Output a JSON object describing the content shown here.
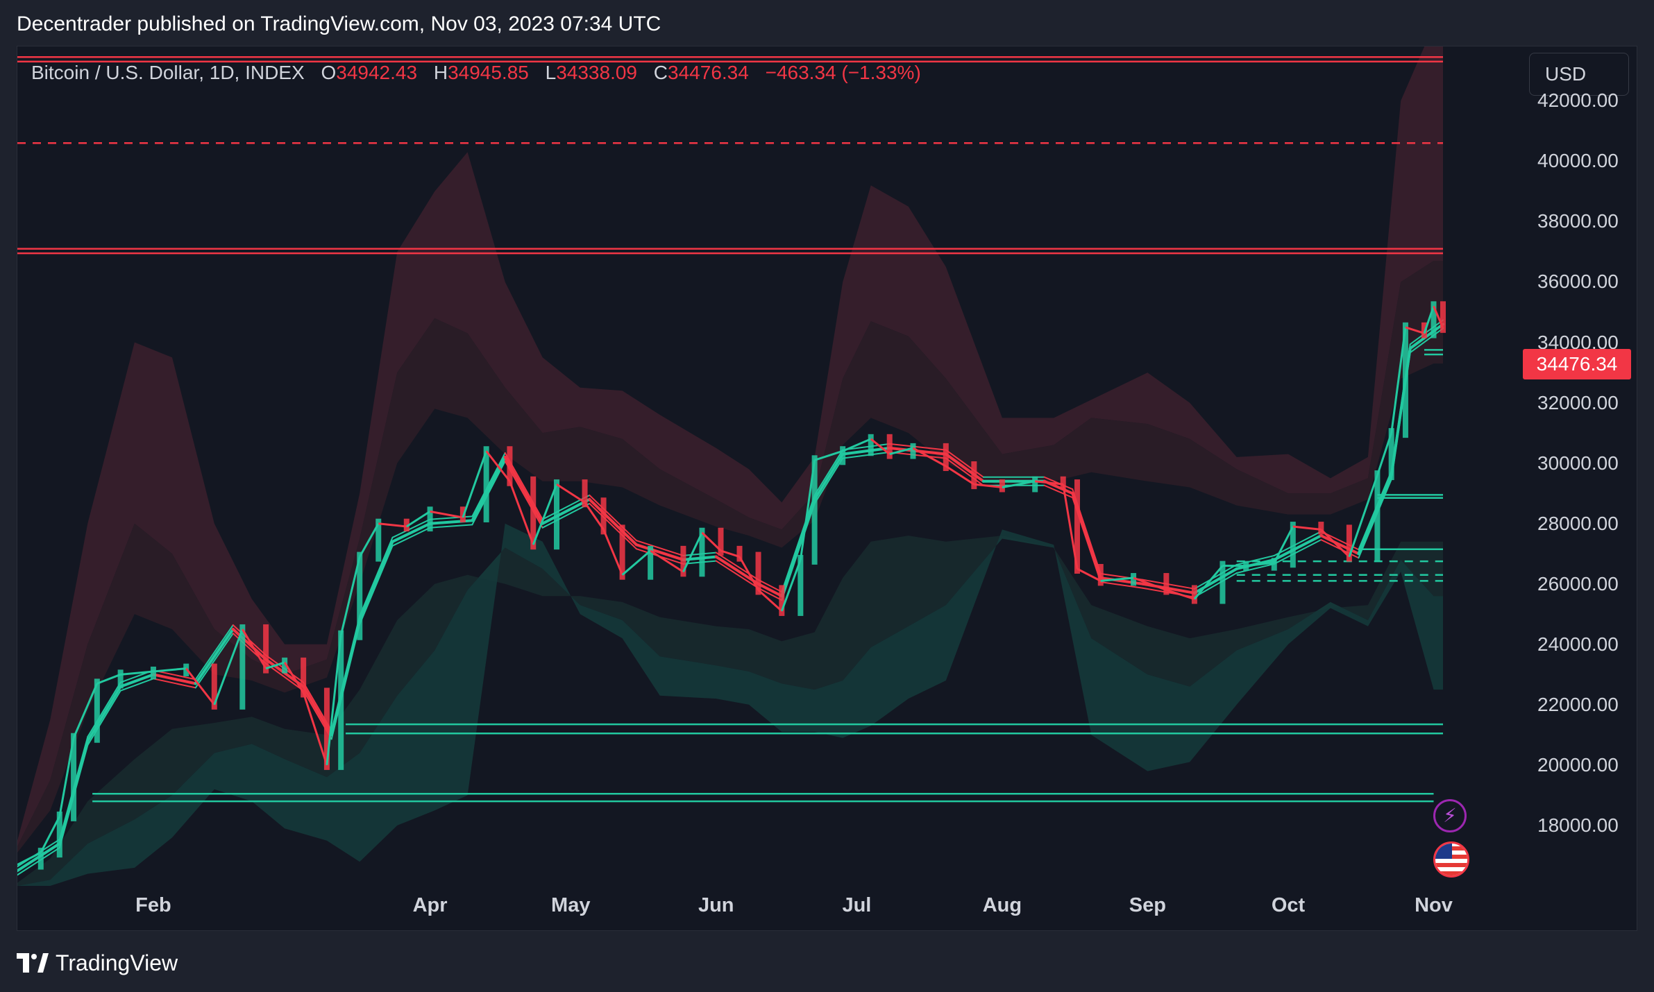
{
  "header": {
    "publisher_line": "Decentrader published on TradingView.com, Nov 03, 2023 07:34 UTC"
  },
  "legend": {
    "symbol": "Bitcoin / U.S. Dollar, 1D, INDEX",
    "open_label": "O",
    "open_value": "34942.43",
    "high_label": "H",
    "high_value": "34945.85",
    "low_label": "L",
    "low_value": "34338.09",
    "close_label": "C",
    "close_value": "34476.34",
    "change": "−463.34 (−1.33%)"
  },
  "currency_button": "USD",
  "last_price_label": "34476.34",
  "footer": {
    "brand": "TradingView"
  },
  "colors": {
    "up": "#22c9a0",
    "down": "#f23645",
    "background": "#131722",
    "frame": "#1e222d",
    "band_red": "#3a1f2c",
    "band_green": "#15383a"
  },
  "icons": {
    "event_1": "lightning-icon",
    "event_2": "us-flag-icon",
    "brand": "tradingview-logo-icon"
  },
  "chart_data": {
    "type": "line",
    "title": "Bitcoin / U.S. Dollar, 1D, INDEX",
    "xlabel": "",
    "ylabel": "",
    "ylim": [
      16000,
      43800
    ],
    "y_ticks": [
      "18000.00",
      "20000.00",
      "22000.00",
      "24000.00",
      "26000.00",
      "28000.00",
      "30000.00",
      "32000.00",
      "34000.00",
      "36000.00",
      "38000.00",
      "40000.00",
      "42000.00"
    ],
    "x_ticks": [
      "Feb",
      "Apr",
      "May",
      "Jun",
      "Jul",
      "Aug",
      "Sep",
      "Oct",
      "Nov"
    ],
    "x_tick_dates": [
      "2023-02-01",
      "2023-04-01",
      "2023-05-01",
      "2023-06-01",
      "2023-07-01",
      "2023-08-01",
      "2023-09-01",
      "2023-10-01",
      "2023-11-01"
    ],
    "x_range": [
      "2023-01-03",
      "2023-11-03"
    ],
    "series": [
      {
        "role": "price",
        "dates": [
          "2023-01-03",
          "2023-01-08",
          "2023-01-12",
          "2023-01-15",
          "2023-01-20",
          "2023-01-25",
          "2023-02-01",
          "2023-02-08",
          "2023-02-14",
          "2023-02-20",
          "2023-02-25",
          "2023-03-01",
          "2023-03-05",
          "2023-03-10",
          "2023-03-13",
          "2023-03-17",
          "2023-03-21",
          "2023-03-27",
          "2023-04-01",
          "2023-04-08",
          "2023-04-13",
          "2023-04-18",
          "2023-04-23",
          "2023-04-28",
          "2023-05-04",
          "2023-05-08",
          "2023-05-12",
          "2023-05-18",
          "2023-05-25",
          "2023-05-29",
          "2023-06-02",
          "2023-06-06",
          "2023-06-10",
          "2023-06-15",
          "2023-06-19",
          "2023-06-22",
          "2023-06-28",
          "2023-07-04",
          "2023-07-08",
          "2023-07-13",
          "2023-07-20",
          "2023-07-26",
          "2023-08-01",
          "2023-08-08",
          "2023-08-14",
          "2023-08-17",
          "2023-08-22",
          "2023-08-29",
          "2023-09-05",
          "2023-09-11",
          "2023-09-17",
          "2023-09-22",
          "2023-09-28",
          "2023-10-02",
          "2023-10-08",
          "2023-10-14",
          "2023-10-20",
          "2023-10-23",
          "2023-10-26",
          "2023-10-30",
          "2023-11-01",
          "2023-11-03"
        ],
        "values": [
          16700,
          17100,
          18300,
          20900,
          22700,
          23000,
          23100,
          23200,
          22000,
          24500,
          23200,
          23400,
          22400,
          20000,
          24300,
          26900,
          28000,
          27900,
          28400,
          28200,
          30400,
          29400,
          27300,
          29300,
          28700,
          27800,
          26300,
          27100,
          26400,
          27700,
          27100,
          26900,
          25800,
          25100,
          26800,
          30100,
          30400,
          30800,
          30300,
          30500,
          29900,
          29300,
          29200,
          29400,
          29300,
          26500,
          26100,
          26200,
          25800,
          25500,
          26600,
          26600,
          26700,
          27900,
          27800,
          26900,
          29600,
          31000,
          34500,
          34300,
          35200,
          34476
        ]
      },
      {
        "role": "moving-average",
        "dates": [
          "2023-01-03",
          "2023-01-12",
          "2023-01-18",
          "2023-01-25",
          "2023-02-01",
          "2023-02-10",
          "2023-02-18",
          "2023-02-25",
          "2023-03-05",
          "2023-03-11",
          "2023-03-17",
          "2023-03-24",
          "2023-04-01",
          "2023-04-10",
          "2023-04-17",
          "2023-04-25",
          "2023-05-05",
          "2023-05-15",
          "2023-05-25",
          "2023-06-01",
          "2023-06-10",
          "2023-06-15",
          "2023-06-22",
          "2023-06-28",
          "2023-07-08",
          "2023-07-20",
          "2023-07-28",
          "2023-08-10",
          "2023-08-16",
          "2023-08-22",
          "2023-08-31",
          "2023-09-11",
          "2023-09-20",
          "2023-09-28",
          "2023-10-08",
          "2023-10-16",
          "2023-10-23",
          "2023-10-27",
          "2023-11-03"
        ],
        "values": [
          16500,
          17400,
          20800,
          22600,
          23000,
          22700,
          24500,
          23500,
          22600,
          21000,
          24800,
          27400,
          28000,
          28100,
          30200,
          28000,
          28800,
          27300,
          26800,
          26900,
          26000,
          25600,
          28800,
          30300,
          30500,
          30300,
          29400,
          29400,
          29000,
          26200,
          26000,
          25700,
          26500,
          26800,
          27600,
          27000,
          29600,
          33800,
          34600
        ]
      }
    ],
    "bands": [
      {
        "role": "resistance-bands-red",
        "dates": [
          "2023-01-03",
          "2023-01-10",
          "2023-01-18",
          "2023-01-28",
          "2023-02-05",
          "2023-02-14",
          "2023-02-22",
          "2023-03-01",
          "2023-03-10",
          "2023-03-17",
          "2023-03-25",
          "2023-04-02",
          "2023-04-09",
          "2023-04-17",
          "2023-04-25",
          "2023-05-03",
          "2023-05-12",
          "2023-05-20",
          "2023-06-01",
          "2023-06-08",
          "2023-06-15",
          "2023-06-22",
          "2023-06-28",
          "2023-07-04",
          "2023-07-12",
          "2023-07-20",
          "2023-08-01",
          "2023-08-12",
          "2023-08-20",
          "2023-09-01",
          "2023-09-10",
          "2023-09-20",
          "2023-10-01",
          "2023-10-10",
          "2023-10-18",
          "2023-10-25",
          "2023-11-01",
          "2023-11-03"
        ],
        "outer": [
          17500,
          21500,
          28000,
          34000,
          33500,
          28000,
          25500,
          24000,
          24000,
          29000,
          37000,
          39000,
          40300,
          36000,
          33500,
          32500,
          32400,
          31600,
          30500,
          29800,
          28700,
          30200,
          36000,
          39200,
          38500,
          36500,
          31500,
          31500,
          32100,
          33000,
          32000,
          30200,
          30300,
          29500,
          30200,
          42000,
          44500,
          44500
        ],
        "mid": [
          17300,
          19500,
          24000,
          28000,
          27000,
          24500,
          23500,
          23000,
          23500,
          27500,
          33000,
          34800,
          34300,
          32500,
          31000,
          31200,
          30800,
          29800,
          28800,
          28200,
          27800,
          29000,
          32800,
          34700,
          34200,
          32800,
          30300,
          30600,
          31500,
          31300,
          30800,
          29800,
          29000,
          29000,
          29500,
          36000,
          36700,
          36700
        ],
        "inner": [
          17100,
          18500,
          21800,
          25000,
          24500,
          23000,
          22800,
          22400,
          22900,
          26000,
          30000,
          31800,
          31500,
          30300,
          29400,
          29400,
          29200,
          28600,
          27900,
          27600,
          27200,
          28100,
          30600,
          31500,
          31000,
          30000,
          29200,
          29400,
          29700,
          29400,
          29200,
          28600,
          28300,
          28300,
          28800,
          32800,
          33300,
          33300
        ]
      },
      {
        "role": "support-bands-green",
        "dates": [
          "2023-01-03",
          "2023-01-10",
          "2023-01-18",
          "2023-01-28",
          "2023-02-05",
          "2023-02-14",
          "2023-02-22",
          "2023-03-01",
          "2023-03-10",
          "2023-03-17",
          "2023-03-25",
          "2023-04-02",
          "2023-04-09",
          "2023-04-17",
          "2023-04-25",
          "2023-05-03",
          "2023-05-12",
          "2023-05-20",
          "2023-06-01",
          "2023-06-08",
          "2023-06-15",
          "2023-06-22",
          "2023-06-28",
          "2023-07-04",
          "2023-07-12",
          "2023-07-20",
          "2023-08-01",
          "2023-08-12",
          "2023-08-20",
          "2023-09-01",
          "2023-09-10",
          "2023-09-20",
          "2023-10-01",
          "2023-10-10",
          "2023-10-18",
          "2023-10-25",
          "2023-11-01",
          "2023-11-03"
        ],
        "inner": [
          16100,
          16900,
          18800,
          20200,
          21200,
          21400,
          21600,
          21200,
          21000,
          22500,
          24800,
          26000,
          26300,
          26000,
          25600,
          25600,
          25400,
          24900,
          24600,
          24500,
          24100,
          24400,
          26200,
          27400,
          27600,
          27400,
          27600,
          27200,
          25300,
          24600,
          24200,
          24500,
          24900,
          25200,
          25300,
          27400,
          27400,
          27400
        ],
        "mid": [
          16000,
          16200,
          17400,
          18200,
          19000,
          20400,
          20700,
          20200,
          19600,
          20400,
          22300,
          23800,
          25800,
          27200,
          26500,
          25300,
          24800,
          23600,
          23300,
          23100,
          22700,
          22500,
          22800,
          23900,
          24600,
          25300,
          27500,
          27200,
          24200,
          23000,
          22600,
          23800,
          24500,
          25400,
          24800,
          26800,
          25600,
          25600
        ],
        "outer": [
          16000,
          16000,
          16400,
          16600,
          17600,
          19200,
          18800,
          17900,
          17500,
          16800,
          18000,
          18500,
          19000,
          28000,
          27400,
          25000,
          24200,
          22300,
          22200,
          22000,
          21100,
          21100,
          20900,
          21300,
          22200,
          22800,
          27800,
          27300,
          21000,
          19800,
          20100,
          22000,
          24000,
          25200,
          24600,
          26400,
          22500,
          22500
        ]
      }
    ],
    "levels": [
      {
        "value": 43450,
        "color": "red",
        "style": "solid"
      },
      {
        "value": 43300,
        "color": "red",
        "style": "solid"
      },
      {
        "value": 40600,
        "color": "red",
        "style": "dashed"
      },
      {
        "value": 37100,
        "color": "red",
        "style": "solid"
      },
      {
        "value": 36950,
        "color": "red",
        "style": "solid"
      },
      {
        "value": 33750,
        "color": "green",
        "style": "solid",
        "from": "2023-10-30"
      },
      {
        "value": 33600,
        "color": "green",
        "style": "solid",
        "from": "2023-10-30"
      },
      {
        "value": 28950,
        "color": "green",
        "style": "solid",
        "from": "2023-10-20"
      },
      {
        "value": 28850,
        "color": "green",
        "style": "solid",
        "from": "2023-10-20"
      },
      {
        "value": 27150,
        "color": "green",
        "style": "solid",
        "from": "2023-10-16"
      },
      {
        "value": 26750,
        "color": "green",
        "style": "dashed",
        "from": "2023-09-20"
      },
      {
        "value": 26300,
        "color": "green",
        "style": "dashed",
        "from": "2023-09-20"
      },
      {
        "value": 26100,
        "color": "green",
        "style": "dashed",
        "from": "2023-09-20"
      },
      {
        "value": 21350,
        "color": "green",
        "style": "solid",
        "from": "2023-03-14"
      },
      {
        "value": 21050,
        "color": "green",
        "style": "solid",
        "from": "2023-03-14"
      },
      {
        "value": 19050,
        "color": "green",
        "style": "solid",
        "from": "2023-01-19",
        "to": "2023-11-01"
      },
      {
        "value": 18800,
        "color": "green",
        "style": "solid",
        "from": "2023-01-19",
        "to": "2023-11-01"
      }
    ],
    "last_value": 34476.34,
    "grid": false,
    "legend": "top-left"
  }
}
